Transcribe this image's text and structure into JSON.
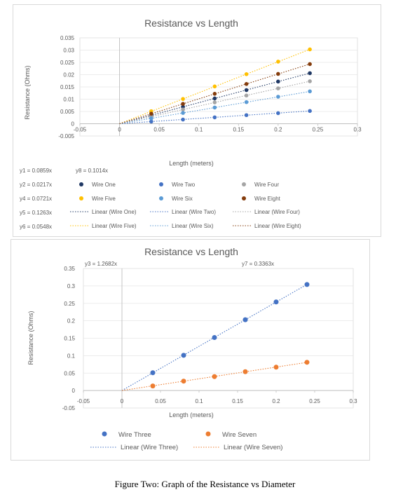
{
  "caption": "Figure Two: Graph of the Resistance vs Diameter",
  "chart_data": [
    {
      "type": "scatter",
      "title": "Resistance vs Length",
      "xlabel": "Length (meters)",
      "ylabel": "Resistance (Ohms)",
      "xlim": [
        -0.05,
        0.3
      ],
      "ylim": [
        -0.005,
        0.035
      ],
      "xticks": [
        "-0.05",
        "0",
        "0.05",
        "0.1",
        "0.15",
        "0.2",
        "0.25",
        "0.3"
      ],
      "yticks": [
        "-0.005",
        "0",
        "0.005",
        "0.01",
        "0.015",
        "0.02",
        "0.025",
        "0.03",
        "0.035"
      ],
      "x": [
        0.04,
        0.08,
        0.12,
        0.16,
        0.2,
        0.24
      ],
      "series": [
        {
          "name": "Wire One",
          "color": "#1f3864",
          "slope": 0.0859,
          "values": [
            0.0034,
            0.0069,
            0.0103,
            0.0137,
            0.0172,
            0.0206
          ]
        },
        {
          "name": "Wire Two",
          "color": "#4472c4",
          "slope": 0.0217,
          "values": [
            0.0009,
            0.0017,
            0.0026,
            0.0035,
            0.0043,
            0.0052
          ]
        },
        {
          "name": "Wire Four",
          "color": "#a5a5a5",
          "slope": 0.0721,
          "values": [
            0.0029,
            0.0058,
            0.0087,
            0.0115,
            0.0144,
            0.0173
          ]
        },
        {
          "name": "Wire Five",
          "color": "#ffc000",
          "slope": 0.1263,
          "values": [
            0.0051,
            0.0101,
            0.0152,
            0.0202,
            0.0253,
            0.0303
          ]
        },
        {
          "name": "Wire Six",
          "color": "#5b9bd5",
          "slope": 0.0548,
          "values": [
            0.0022,
            0.0044,
            0.0066,
            0.0088,
            0.011,
            0.0132
          ]
        },
        {
          "name": "Wire Eight",
          "color": "#843c0c",
          "slope": 0.1014,
          "values": [
            0.0041,
            0.0081,
            0.0122,
            0.0162,
            0.0203,
            0.0243
          ]
        }
      ],
      "equations": [
        {
          "text": "y1 = 0.0859x"
        },
        {
          "text": "y8 = 0.1014x"
        },
        {
          "text": "y2 = 0.0217x"
        },
        {
          "text": "y4 = 0.0721x"
        },
        {
          "text": "y5 = 0.1263x"
        },
        {
          "text": "y6 = 0.0548x"
        }
      ],
      "legend": {
        "placement": "bottom",
        "markers": [
          "Wire One",
          "Wire Two",
          "Wire Four",
          "Wire Five",
          "Wire Six",
          "Wire Eight"
        ],
        "trendlines": [
          "Linear (Wire One)",
          "Linear (Wire Two)",
          "Linear (Wire Four)",
          "Linear (Wire Five)",
          "Linear (Wire Six)",
          "Linear (Wire Eight)"
        ]
      }
    },
    {
      "type": "scatter",
      "title": "Resistance vs Length",
      "xlabel": "Length (meters)",
      "ylabel": "Resistance (Ohms)",
      "xlim": [
        -0.05,
        0.3
      ],
      "ylim": [
        -0.05,
        0.35
      ],
      "xticks": [
        "-0.05",
        "0",
        "0.05",
        "0.1",
        "0.15",
        "0.2",
        "0.25",
        "0.3"
      ],
      "yticks": [
        "-0.05",
        "0",
        "0.05",
        "0.1",
        "0.15",
        "0.2",
        "0.25",
        "0.3",
        "0.35"
      ],
      "x": [
        0.04,
        0.08,
        0.12,
        0.16,
        0.2,
        0.24
      ],
      "series": [
        {
          "name": "Wire Three",
          "color": "#4472c4",
          "slope": 1.2682,
          "values": [
            0.051,
            0.101,
            0.152,
            0.203,
            0.254,
            0.304
          ]
        },
        {
          "name": "Wire Seven",
          "color": "#ed7d31",
          "slope": 0.3363,
          "values": [
            0.013,
            0.027,
            0.04,
            0.054,
            0.067,
            0.081
          ]
        }
      ],
      "equations": [
        {
          "text": "y3 = 1.2682x"
        },
        {
          "text": "y7 = 0.3363x"
        }
      ],
      "legend": {
        "placement": "bottom",
        "markers": [
          "Wire Three",
          "Wire Seven"
        ],
        "trendlines": [
          "Linear (Wire Three)",
          "Linear (Wire Seven)"
        ]
      }
    }
  ]
}
